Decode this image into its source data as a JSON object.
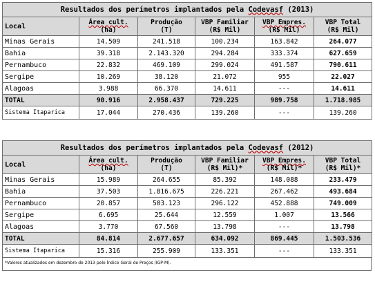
{
  "table_2013": {
    "title_pre": "Resultados dos perímetros implantados pela ",
    "title_brand": "Codevasf",
    "title_post": " (2013)",
    "headers": {
      "local": "Local",
      "area_1": "Área cult.",
      "area_2": "(ha)",
      "prod_1": "Produção",
      "prod_2": "(T)",
      "vbpf_1": "VBP Familiar",
      "vbpf_2": "(R$ Mil)",
      "vbpe_1": "VBP Empres.",
      "vbpe_2": "(R$ Mil)",
      "vbpt_1": "VBP Total",
      "vbpt_2": "(R$ Mil)"
    },
    "rows": [
      {
        "local": "Minas Gerais",
        "area": "14.509",
        "prod": "241.518",
        "vbpf": "100.234",
        "vbpe": "163.842",
        "vbpt": "264.077"
      },
      {
        "local": "Bahia",
        "area": "39.318",
        "prod": "2.143.320",
        "vbpf": "294.284",
        "vbpe": "333.374",
        "vbpt": "627.659"
      },
      {
        "local": "Pernambuco",
        "area": "22.832",
        "prod": "469.109",
        "vbpf": "299.024",
        "vbpe": "491.587",
        "vbpt": "790.611"
      },
      {
        "local": "Sergipe",
        "area": "10.269",
        "prod": "38.120",
        "vbpf": "21.072",
        "vbpe": "955",
        "vbpt": "22.027"
      },
      {
        "local": "Alagoas",
        "area": "3.988",
        "prod": "66.370",
        "vbpf": "14.611",
        "vbpe": "---",
        "vbpt": "14.611"
      }
    ],
    "total": {
      "local": "TOTAL",
      "area": "90.916",
      "prod": "2.958.437",
      "vbpf": "729.225",
      "vbpe": "989.758",
      "vbpt": "1.718.985"
    },
    "extra": {
      "local": "Sistema Itaparica",
      "area": "17.044",
      "prod": "270.436",
      "vbpf": "139.260",
      "vbpe": "---",
      "vbpt": "139.260"
    }
  },
  "table_2012": {
    "title_pre": "Resultados dos perímetros implantados pela ",
    "title_brand": "Codevasf",
    "title_post": " (2012)",
    "headers": {
      "local": "Local",
      "area_1": "Área cult.",
      "area_2": "(ha)",
      "prod_1": "Produção",
      "prod_2": "(T)",
      "vbpf_1": "VBP Familiar",
      "vbpf_2": "(R$ Mil)*",
      "vbpe_1": "VBP Empres.",
      "vbpe_2": "(R$ Mil)*",
      "vbpt_1": "VBP Total",
      "vbpt_2": "(R$ Mil)*"
    },
    "rows": [
      {
        "local": "Minas Gerais",
        "area": "15.989",
        "prod": "264.655",
        "vbpf": "85.392",
        "vbpe": "148.088",
        "vbpt": "233.479"
      },
      {
        "local": "Bahia",
        "area": "37.503",
        "prod": "1.816.675",
        "vbpf": "226.221",
        "vbpe": "267.462",
        "vbpt": "493.684"
      },
      {
        "local": "Pernambuco",
        "area": "20.857",
        "prod": "503.123",
        "vbpf": "296.122",
        "vbpe": "452.888",
        "vbpt": "749.009"
      },
      {
        "local": "Sergipe",
        "area": "6.695",
        "prod": "25.644",
        "vbpf": "12.559",
        "vbpe": "1.007",
        "vbpt": "13.566"
      },
      {
        "local": "Alagoas",
        "area": "3.770",
        "prod": "67.560",
        "vbpf": "13.798",
        "vbpe": "---",
        "vbpt": "13.798"
      }
    ],
    "total": {
      "local": "TOTAL",
      "area": "84.814",
      "prod": "2.677.657",
      "vbpf": "634.092",
      "vbpe": "869.445",
      "vbpt": "1.503.536"
    },
    "extra": {
      "local": "Sistema Itaparica",
      "area": "15.316",
      "prod": "255.909",
      "vbpf": "133.351",
      "vbpe": "---",
      "vbpt": "133.351"
    },
    "note": "*Valores atualizados em dezembro de 2013 pelo Índice Geral de Preços (IGP-M)."
  }
}
